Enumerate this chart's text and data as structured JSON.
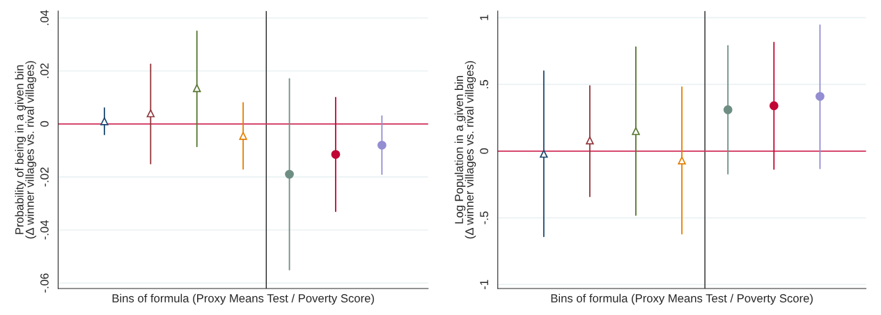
{
  "chart_data": [
    {
      "type": "scatter",
      "ylabel": "Probability of being in a given bin\n(Δ winner villages vs. rival villages)",
      "xlabel": "Bins of formula (Proxy Means Test / Poverty Score)",
      "categories": [
        null,
        null,
        null,
        null,
        null,
        null,
        null
      ],
      "ylim": [
        -0.0621,
        0.0426
      ],
      "yticks": [
        {
          "value": -0.06,
          "label": "-.06"
        },
        {
          "value": -0.04,
          "label": "-.04"
        },
        {
          "value": -0.02,
          "label": "-.02"
        },
        0,
        {
          "value": 0.02,
          "label": ".02"
        },
        {
          "value": 0.04,
          "label": ".04"
        }
      ],
      "grid": "y",
      "legend": false,
      "series": [
        {
          "marker": "triangle",
          "colors": [
            "#1a476f",
            "#90353b",
            "#55752f",
            "#e37e00",
            null,
            null,
            null
          ],
          "values": [
            0.001,
            0.004,
            0.0135,
            -0.0045,
            null,
            null,
            null
          ],
          "errors": [
            [
              -0.004,
              0.006
            ],
            [
              -0.015,
              0.0225
            ],
            [
              -0.0085,
              0.035
            ],
            [
              -0.017,
              0.008
            ],
            null,
            null,
            null
          ]
        },
        {
          "marker": "circle",
          "colors": [
            null,
            null,
            null,
            null,
            "#6e8e84",
            "#c10534",
            "#938dd2"
          ],
          "values": [
            null,
            null,
            null,
            null,
            -0.019,
            -0.0115,
            -0.008
          ],
          "errors": [
            null,
            null,
            null,
            null,
            [
              -0.055,
              0.017
            ],
            [
              -0.033,
              0.01
            ],
            [
              -0.019,
              0.003
            ]
          ]
        }
      ],
      "ref_lines": [
        {
          "axis": "y",
          "value": 0,
          "color": "#d3305a"
        }
      ]
    },
    {
      "type": "scatter",
      "ylabel": "Log Population in a given bin\n(Δ winner villages vs. rival villages)",
      "xlabel": "Bins of formula (Proxy Means Test / Poverty Score)",
      "categories": [
        null,
        null,
        null,
        null,
        null,
        null,
        null
      ],
      "ylim": [
        -1.03,
        1.05
      ],
      "yticks": [
        -1,
        {
          "value": -0.5,
          "label": "-.5"
        },
        0,
        {
          "value": 0.5,
          "label": ".5"
        },
        1
      ],
      "grid": "y",
      "legend": false,
      "series": [
        {
          "marker": "triangle",
          "colors": [
            "#1a476f",
            "#90353b",
            "#55752f",
            "#e37e00",
            null,
            null,
            null
          ],
          "values": [
            -0.02,
            0.08,
            0.15,
            -0.07,
            null,
            null,
            null
          ],
          "errors": [
            [
              -0.64,
              0.6
            ],
            [
              -0.34,
              0.49
            ],
            [
              -0.48,
              0.78
            ],
            [
              -0.62,
              0.48
            ],
            null,
            null,
            null
          ]
        },
        {
          "marker": "circle",
          "colors": [
            null,
            null,
            null,
            null,
            "#6e8e84",
            "#c10534",
            "#938dd2"
          ],
          "values": [
            null,
            null,
            null,
            null,
            0.31,
            0.34,
            0.41
          ],
          "errors": [
            null,
            null,
            null,
            null,
            [
              -0.17,
              0.79
            ],
            [
              -0.135,
              0.815
            ],
            [
              -0.13,
              0.945
            ]
          ]
        }
      ],
      "ref_lines": [
        {
          "axis": "y",
          "value": 0,
          "color": "#d3305a"
        }
      ]
    }
  ]
}
